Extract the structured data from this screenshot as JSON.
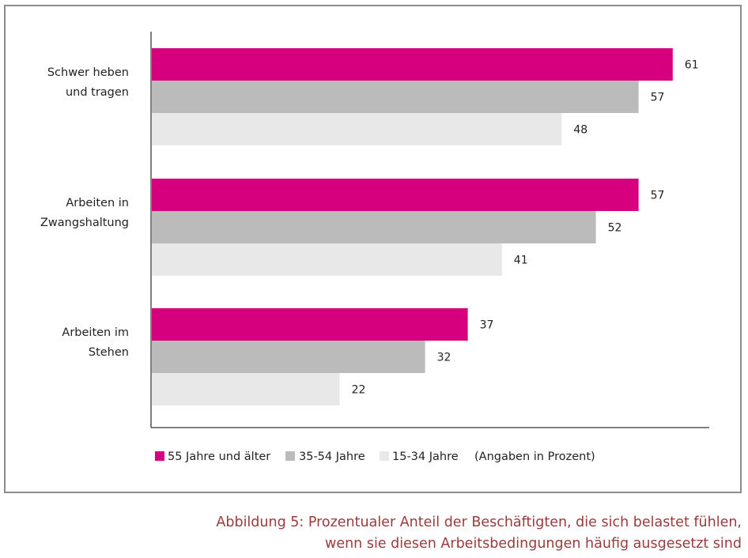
{
  "chart_data": {
    "type": "bar",
    "orientation": "horizontal",
    "categories": [
      [
        "Schwer heben",
        "und tragen"
      ],
      [
        "Arbeiten in",
        "Zwangshaltung"
      ],
      [
        "Arbeiten im",
        "Stehen"
      ]
    ],
    "series": [
      {
        "name": "55 Jahre und älter",
        "color": "#d6007e",
        "values": [
          61,
          57,
          37
        ]
      },
      {
        "name": "35-54 Jahre",
        "color": "#bbbbbb",
        "values": [
          57,
          52,
          32
        ]
      },
      {
        "name": "15-34 Jahre",
        "color": "#e8e8e8",
        "values": [
          48,
          41,
          22
        ]
      }
    ],
    "unit_note": "(Angaben in Prozent)",
    "xlim": [
      0,
      65
    ],
    "grid": false,
    "legend_position": "bottom"
  },
  "caption": {
    "line1": "Abbildung 5: Prozentualer Anteil der Beschäftigten, die sich belastet fühlen,",
    "line2": "wenn sie diesen Arbeitsbedingungen häufig ausgesetzt sind"
  }
}
